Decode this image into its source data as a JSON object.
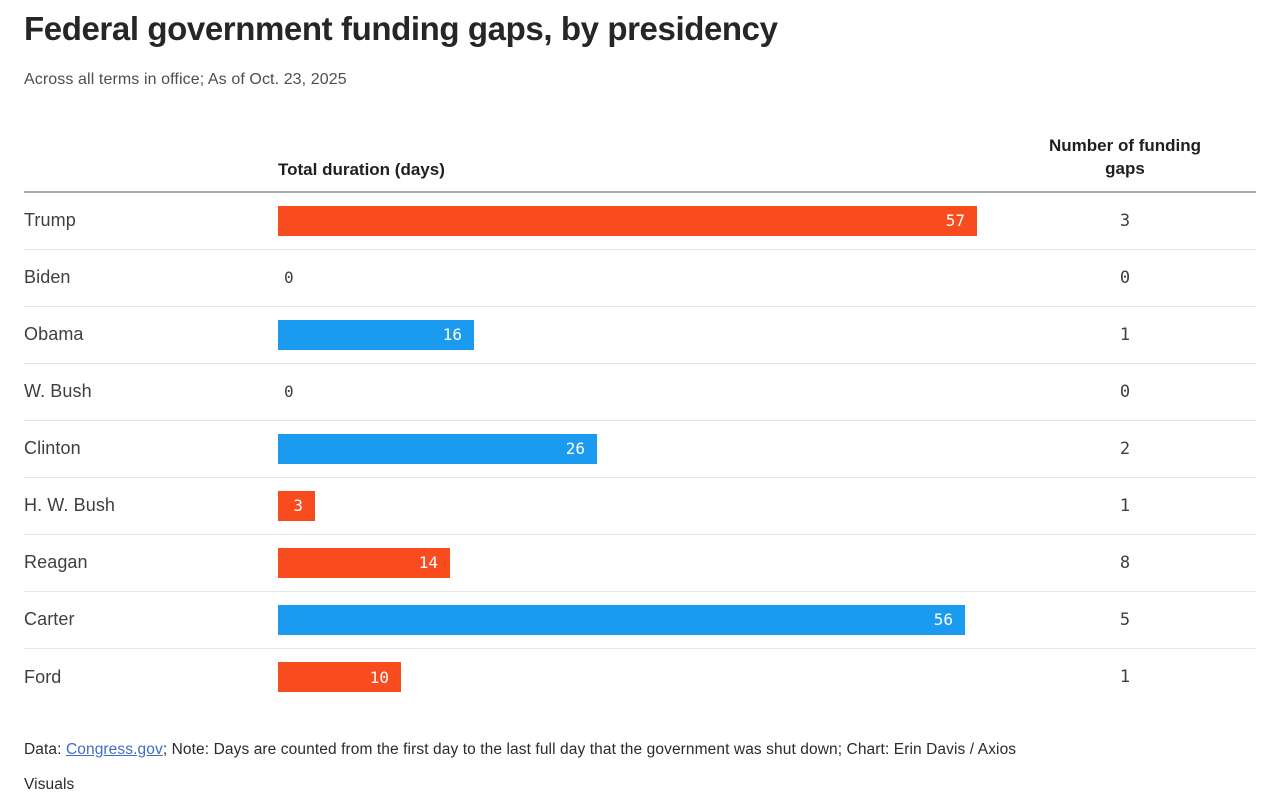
{
  "header": {
    "title": "Federal government funding gaps, by presidency",
    "subtitle": "Across all terms in office; As of Oct. 23, 2025"
  },
  "columns": {
    "duration_header": "Total duration (days)",
    "count_header": "Number of funding gaps"
  },
  "colors": {
    "orange_bar": "#f84c1f",
    "blue_bar": "#1b9bf0",
    "bar_value_text": "#ffffff",
    "header_rule": "#a9a9a9",
    "row_rule": "#e6e6e6",
    "link_blue": "#3e6cc7"
  },
  "chart_data": {
    "type": "bar",
    "orientation": "horizontal",
    "title": "Federal government funding gaps, by presidency",
    "subtitle": "Across all terms in office; As of Oct. 23, 2025",
    "columns": [
      "Total duration (days)",
      "Number of funding gaps"
    ],
    "xlim": [
      0,
      57
    ],
    "grid": false,
    "value_labels": "inside-end",
    "categories": [
      "Trump",
      "Biden",
      "Obama",
      "W. Bush",
      "Clinton",
      "H. W. Bush",
      "Reagan",
      "Carter",
      "Ford"
    ],
    "series": [
      {
        "name": "Total duration (days)",
        "values": [
          57,
          0,
          16,
          0,
          26,
          3,
          14,
          56,
          10
        ]
      },
      {
        "name": "Number of funding gaps",
        "values": [
          3,
          0,
          1,
          0,
          2,
          1,
          8,
          5,
          1
        ]
      }
    ],
    "rows": [
      {
        "category": "Trump",
        "duration_days": 57,
        "funding_gaps": 3,
        "bar_color": "#f84c1f"
      },
      {
        "category": "Biden",
        "duration_days": 0,
        "funding_gaps": 0,
        "bar_color": null
      },
      {
        "category": "Obama",
        "duration_days": 16,
        "funding_gaps": 1,
        "bar_color": "#1b9bf0"
      },
      {
        "category": "W. Bush",
        "duration_days": 0,
        "funding_gaps": 0,
        "bar_color": null
      },
      {
        "category": "Clinton",
        "duration_days": 26,
        "funding_gaps": 2,
        "bar_color": "#1b9bf0"
      },
      {
        "category": "H. W. Bush",
        "duration_days": 3,
        "funding_gaps": 1,
        "bar_color": "#f84c1f"
      },
      {
        "category": "Reagan",
        "duration_days": 14,
        "funding_gaps": 8,
        "bar_color": "#f84c1f"
      },
      {
        "category": "Carter",
        "duration_days": 56,
        "funding_gaps": 5,
        "bar_color": "#1b9bf0"
      },
      {
        "category": "Ford",
        "duration_days": 10,
        "funding_gaps": 1,
        "bar_color": "#f84c1f"
      }
    ]
  },
  "footer": {
    "data_label": "Data: ",
    "source_link": "Congress.gov",
    "note": "; Note: Days are counted from the first day to the last full day that the government was shut down; Chart: Erin Davis / Axios",
    "line2": "Visuals"
  }
}
